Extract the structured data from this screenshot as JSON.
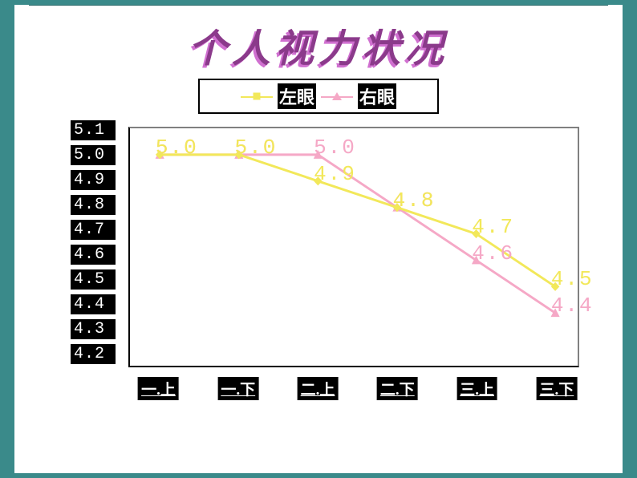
{
  "title": "个人视力状况",
  "legend": {
    "series": [
      {
        "key": "left",
        "label": "左眼",
        "color": "#f2e85a",
        "marker": "diamond"
      },
      {
        "key": "right",
        "label": "右眼",
        "color": "#f5a8c6",
        "marker": "triangle"
      }
    ]
  },
  "chart": {
    "type": "line",
    "categories": [
      "一.上",
      "一.下",
      "二.上",
      "二.下",
      "三.上",
      "三.下"
    ],
    "ylim": [
      4.2,
      5.1
    ],
    "ytick_step": 0.1,
    "yticks": [
      "5.1",
      "5.0",
      "4.9",
      "4.8",
      "4.7",
      "4.6",
      "4.5",
      "4.4",
      "4.3",
      "4.2"
    ],
    "plot_bg": "#ffffff",
    "axis_color": "#000000",
    "series": {
      "left": {
        "color": "#f2e85a",
        "label_color": "#f2e85a",
        "values": [
          5.0,
          5.0,
          4.9,
          4.8,
          4.7,
          4.5
        ]
      },
      "right": {
        "color": "#f5a8c6",
        "label_color": "#f5a8c6",
        "values": [
          5.0,
          5.0,
          5.0,
          4.8,
          4.6,
          4.4
        ]
      }
    },
    "line_width": 3,
    "title_color_main": "#8b3a8b",
    "title_color_shadow": "#d070d0",
    "title_fontsize": 48
  }
}
